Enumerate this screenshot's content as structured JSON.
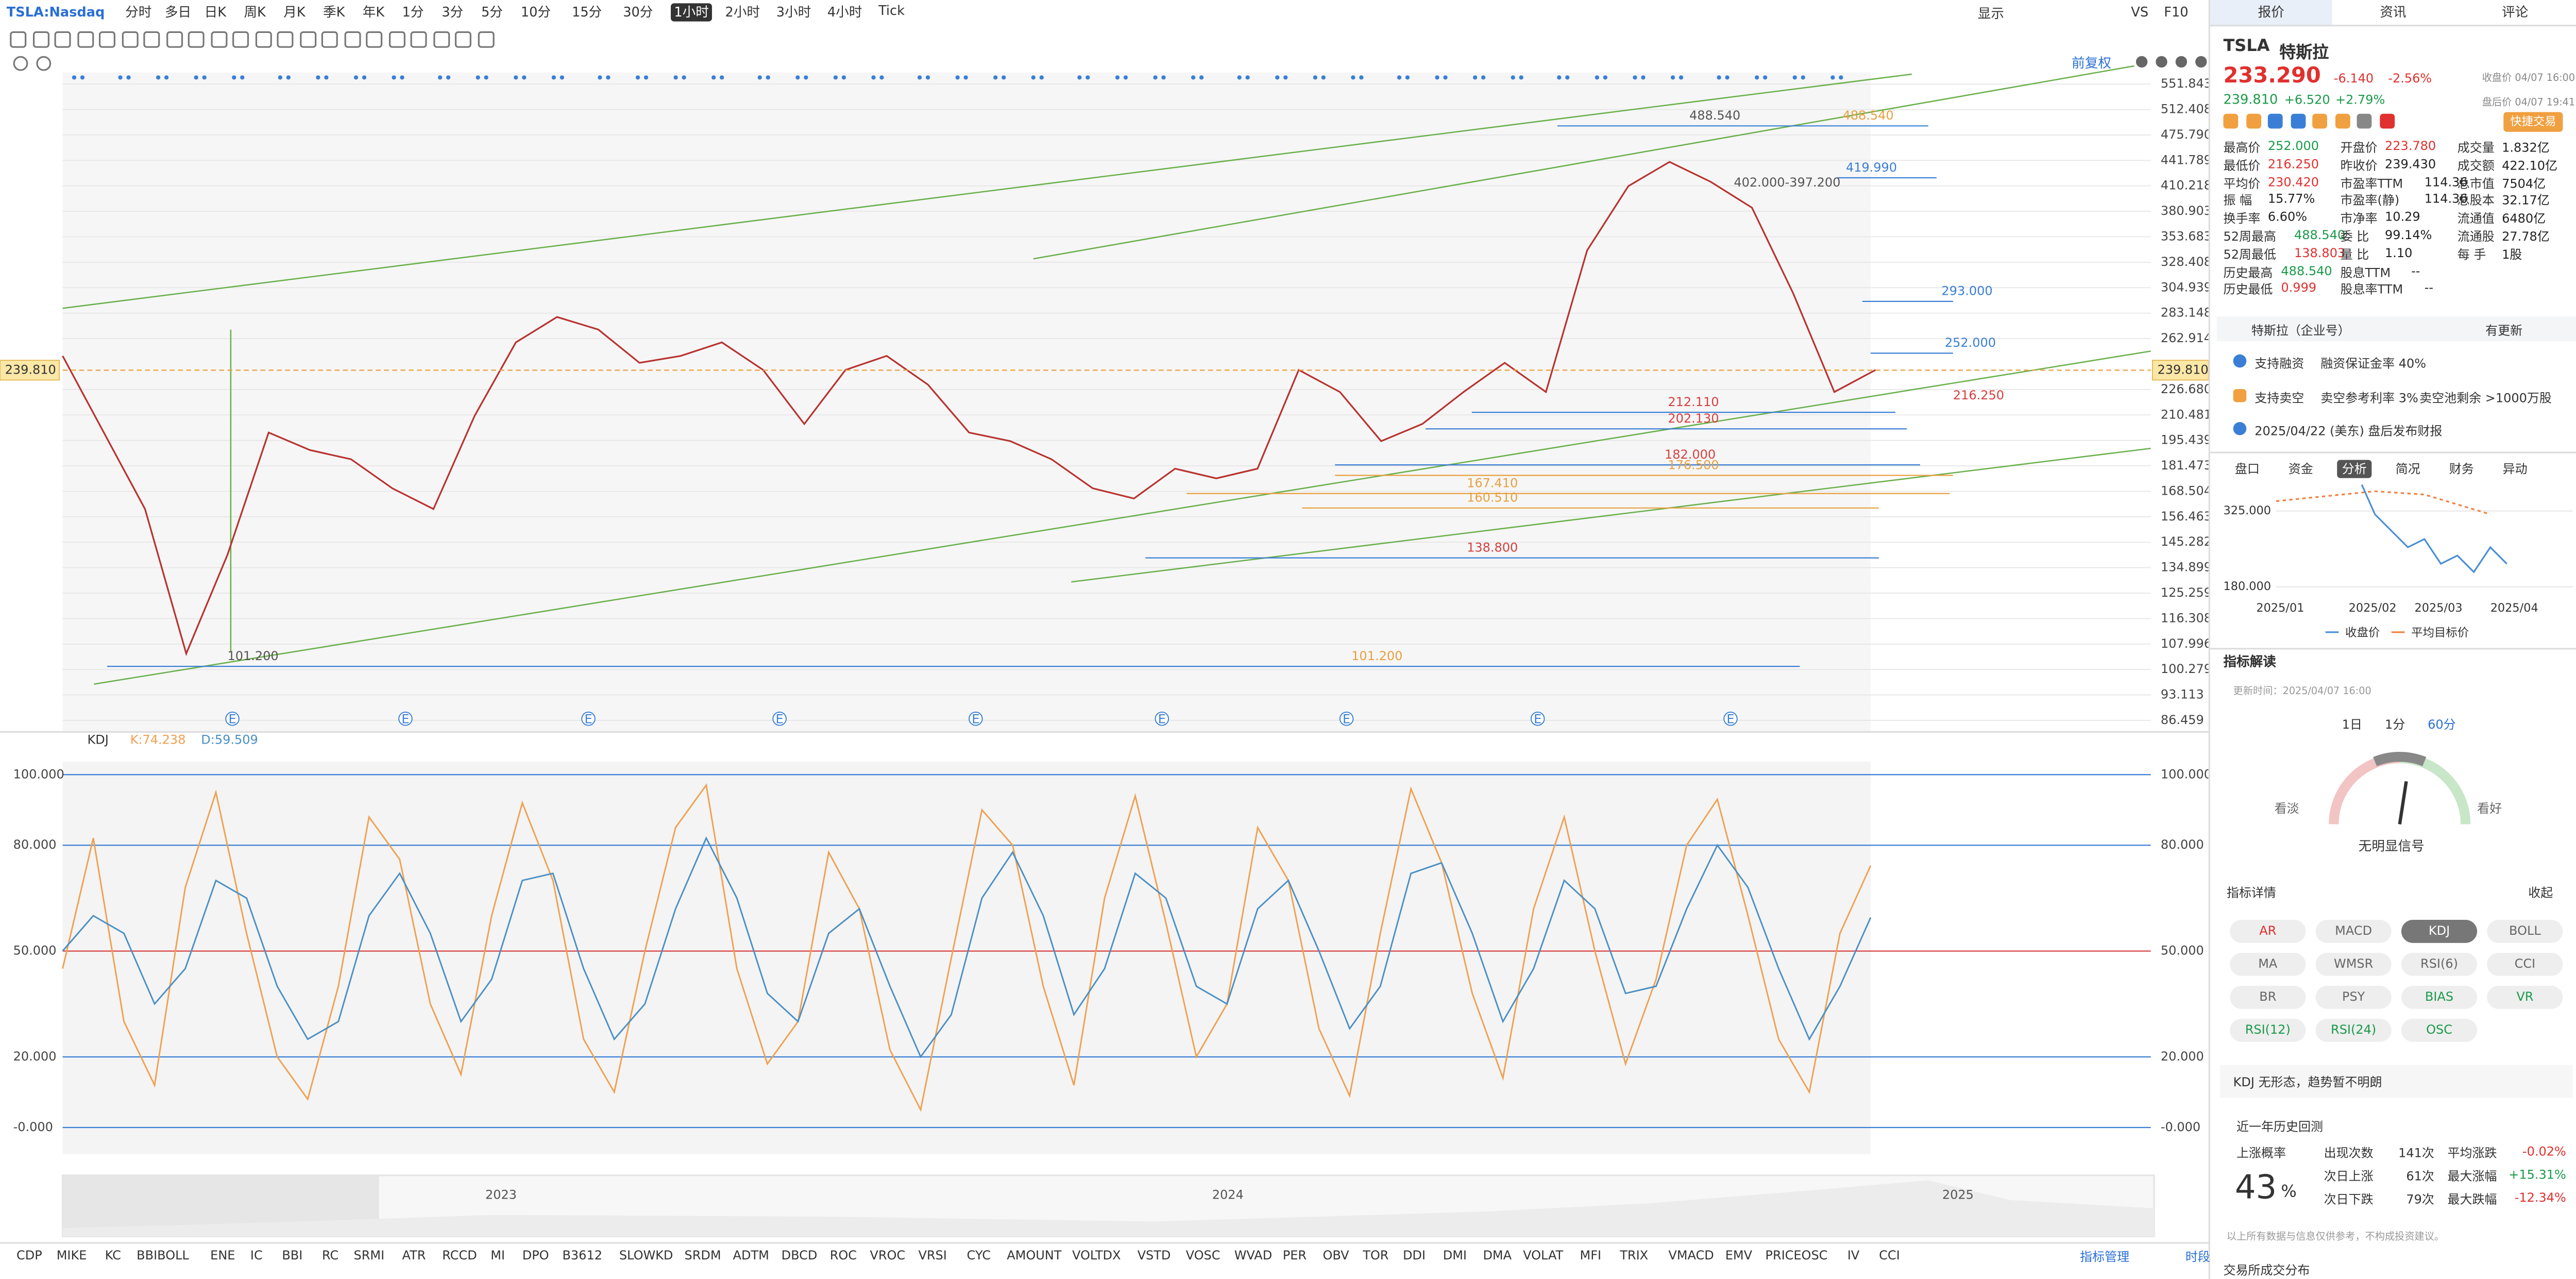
{
  "toolbar": {
    "symbol": "TSLA:Nasdaq",
    "periods": [
      "分时",
      "多日",
      "日K",
      "周K",
      "月K",
      "季K",
      "年K",
      "1分",
      "3分",
      "5分",
      "10分",
      "15分",
      "30分",
      "1小时",
      "2小时",
      "3小时",
      "4小时",
      "Tick"
    ],
    "selected_period": 13,
    "right": [
      "显示",
      "VS",
      "F10"
    ]
  },
  "adjust": "前复权",
  "chart_data": [
    {
      "type": "line",
      "log_scale": true,
      "ylim": [
        86.459,
        551.843
      ],
      "yticks": [
        551.843,
        512.408,
        {
          "value": 475.79,
          "label": "475.790"
        },
        441.789,
        410.218,
        380.903,
        353.683,
        328.408,
        304.939,
        283.148,
        262.914,
        {
          "value": 226.68,
          "label": "226.680"
        },
        210.481,
        195.439,
        181.473,
        168.504,
        156.463,
        145.282,
        134.899,
        125.259,
        116.308,
        107.996,
        100.279,
        93.113,
        86.459
      ],
      "current": {
        "value": 239.81,
        "label": "239.810"
      },
      "color": "#b8322f",
      "values": [
        250,
        200,
        160,
        105,
        140,
        200,
        190,
        185,
        170,
        160,
        210,
        260,
        280,
        270,
        245,
        250,
        260,
        240,
        205,
        240,
        250,
        230,
        200,
        195,
        185,
        170,
        165,
        180,
        175,
        180,
        240,
        225,
        195,
        205,
        225,
        245,
        225,
        340,
        410,
        440,
        415,
        385,
        300,
        225,
        240
      ],
      "annotations": [
        {
          "value": 488.54,
          "label": "488.540",
          "color": "#555555"
        },
        {
          "value": 488.54,
          "label": "488.540",
          "color": "#e8a040"
        },
        {
          "value": 419.99,
          "label": "419.990",
          "color": "#3a7fd5"
        },
        {
          "value": 402,
          "label": "402.000-397.200",
          "color": "#555555"
        },
        {
          "value": 293,
          "label": "293.000",
          "color": "#3a7fd5"
        },
        {
          "value": 252,
          "label": "252.000",
          "color": "#3a7fd5"
        },
        {
          "value": 216.25,
          "label": "216.250",
          "color": "#d84040"
        },
        {
          "value": 212.11,
          "label": "212.110",
          "color": "#d84040"
        },
        {
          "value": 202.13,
          "label": "202.130",
          "color": "#d84040"
        },
        {
          "value": 182,
          "label": "182.000",
          "color": "#d84040"
        },
        {
          "value": 176.5,
          "label": "176.500",
          "color": "#e8a040"
        },
        {
          "value": 167.41,
          "label": "167.410",
          "color": "#e8a040"
        },
        {
          "value": 160.51,
          "label": "160.510",
          "color": "#e8a040"
        },
        {
          "value": 138.8,
          "label": "138.800",
          "color": "#d84040"
        },
        {
          "value": 101.2,
          "label": "101.200",
          "color": "#555555"
        },
        {
          "value": 101.2,
          "label": "101.200",
          "color": "#e8a040"
        }
      ],
      "events": [
        "E",
        "E",
        "E",
        "E",
        "E",
        "E",
        "E",
        "E",
        "E"
      ]
    },
    {
      "type": "line",
      "title": "KDJ",
      "ylim": [
        -7.5,
        102.3
      ],
      "yticks": [
        {
          "value": 100,
          "label": "100.000"
        },
        {
          "value": 80,
          "label": "80.000"
        },
        {
          "value": 50,
          "label": "50.000"
        },
        {
          "value": 20,
          "label": "20.000"
        },
        {
          "value": 0,
          "label": "-0.000"
        }
      ],
      "series": [
        {
          "name": "K:74.238",
          "color": "#f0a050",
          "values": [
            45,
            82,
            30,
            12,
            68,
            95,
            55,
            20,
            8,
            40,
            88,
            76,
            35,
            15,
            60,
            92,
            70,
            25,
            10,
            50,
            85,
            97,
            45,
            18,
            30,
            78,
            62,
            22,
            5,
            48,
            90,
            80,
            40,
            12,
            65,
            94,
            58,
            20,
            35,
            85,
            70,
            28,
            9,
            55,
            96,
            75,
            38,
            14,
            62,
            88,
            50,
            18,
            42,
            80,
            93,
            60,
            25,
            10,
            55,
            74.238
          ]
        },
        {
          "name": "D:59.509",
          "color": "#4a8fc4",
          "values": [
            50,
            60,
            55,
            35,
            45,
            70,
            65,
            40,
            25,
            30,
            60,
            72,
            55,
            30,
            42,
            70,
            72,
            45,
            25,
            35,
            62,
            82,
            65,
            38,
            30,
            55,
            62,
            40,
            20,
            32,
            65,
            78,
            60,
            32,
            45,
            72,
            65,
            40,
            35,
            62,
            70,
            50,
            28,
            40,
            72,
            75,
            55,
            30,
            45,
            70,
            62,
            38,
            40,
            62,
            80,
            68,
            45,
            25,
            40,
            59.509
          ]
        }
      ]
    }
  ],
  "navigator": {
    "years": [
      "2023",
      "2024",
      "2025"
    ]
  },
  "indicator_bar": {
    "items": [
      "CDP",
      "MIKE",
      "KC",
      "BBIBOLL",
      "ENE",
      "IC",
      "BBI",
      "RC",
      "SRMI",
      "ATR",
      "RCCD",
      "MI",
      "DPO",
      "B3612",
      "SLOWKD",
      "SRDM",
      "ADTM",
      "DBCD",
      "ROC",
      "VROC",
      "VRSI",
      "CYC",
      "AMOUNT",
      "VOLTDX",
      "VSTD",
      "VOSC",
      "WVAD",
      "PER",
      "OBV",
      "TOR",
      "DDI",
      "DMI",
      "DMA",
      "VOLAT",
      "MFI",
      "TRIX",
      "VMACD",
      "EMV",
      "PRICEOSC",
      "IV",
      "CCI"
    ],
    "manage": "指标管理",
    "session": "时段"
  },
  "quote": {
    "tabs": [
      "报价",
      "资讯",
      "评论"
    ],
    "ticker": "TSLA",
    "name": "特斯拉",
    "price": "233.290",
    "change": "-6.140",
    "change_pct": "-2.56%",
    "close_label": "收盘价 04/07 16:00",
    "after_price": "239.810",
    "after_change": "+6.520",
    "after_pct": "+2.79%",
    "after_label": "盘后价 04/07 19:41",
    "trade_button": "快捷交易",
    "stats": [
      [
        {
          "label": "最高价",
          "value": "252.000",
          "color": "#1a9a4a"
        },
        {
          "label": "最低价",
          "value": "216.250",
          "color": "#e0302f"
        },
        {
          "label": "平均价",
          "value": "230.420",
          "color": "#e0302f"
        },
        {
          "label": "振 幅",
          "value": "15.77%",
          "color": "#222"
        },
        {
          "label": "换手率",
          "value": "6.60%",
          "color": "#222"
        },
        {
          "label": "52周最高",
          "value": "488.540",
          "color": "#1a9a4a"
        },
        {
          "label": "52周最低",
          "value": "138.803",
          "color": "#e0302f"
        },
        {
          "label": "历史最高",
          "value": "488.540",
          "color": "#1a9a4a"
        },
        {
          "label": "历史最低",
          "value": "0.999",
          "color": "#e0302f"
        }
      ],
      [
        {
          "label": "开盘价",
          "value": "223.780",
          "color": "#e0302f"
        },
        {
          "label": "昨收价",
          "value": "239.430",
          "color": "#222"
        },
        {
          "label": "市盈率TTM",
          "value": "114.36",
          "color": "#222"
        },
        {
          "label": "市盈率(静)",
          "value": "114.36",
          "color": "#222"
        },
        {
          "label": "市净率",
          "value": "10.29",
          "color": "#222"
        },
        {
          "label": "委 比",
          "value": "99.14%",
          "color": "#222"
        },
        {
          "label": "量 比",
          "value": "1.10",
          "color": "#222"
        },
        {
          "label": "股息TTM",
          "value": "--",
          "color": "#222"
        },
        {
          "label": "股息率TTM",
          "value": "--",
          "color": "#222"
        }
      ],
      [
        {
          "label": "成交量",
          "value": "1.832亿",
          "color": "#222"
        },
        {
          "label": "成交额",
          "value": "422.10亿",
          "color": "#222"
        },
        {
          "label": "总市值",
          "value": "7504亿",
          "color": "#222"
        },
        {
          "label": "总股本",
          "value": "32.17亿",
          "color": "#222"
        },
        {
          "label": "流通值",
          "value": "6480亿",
          "color": "#222"
        },
        {
          "label": "流通股",
          "value": "27.78亿",
          "color": "#222"
        },
        {
          "label": "每 手",
          "value": "1股",
          "color": "#222"
        }
      ]
    ],
    "company": "特斯拉（企业号）",
    "update": "有更新",
    "margin": [
      "支持融资",
      "融资保证金率 40%"
    ],
    "short": [
      "支持卖空",
      "卖空参考利率 3%",
      "卖空池剩余 >1000万股"
    ],
    "earnings": "2025/04/22 (美东) 盘后发布财报",
    "subtabs": [
      "盘口",
      "资金",
      "分析",
      "简况",
      "财务",
      "异动"
    ],
    "subtab_selected": 2,
    "mini_chart": {
      "yticks": [
        "325.000",
        "180.000"
      ],
      "xlabels": [
        "2025/01",
        "2025/02",
        "2025/03",
        "2025/04"
      ],
      "legend": [
        "收盘价",
        "平均目标价"
      ]
    }
  },
  "analysis": {
    "title": "指标解读",
    "updated": "更新时间：2025/04/07 16:00",
    "periods": [
      "1日",
      "1分",
      "60分"
    ],
    "bearish": "看淡",
    "bullish": "看好",
    "signal": "无明显信号",
    "details": "指标详情",
    "collapse": "收起",
    "buttons": [
      {
        "label": "AR",
        "color": "#e0302f"
      },
      {
        "label": "MACD",
        "color": "#666"
      },
      {
        "label": "KDJ",
        "color": "#666"
      },
      {
        "label": "BOLL",
        "color": "#666"
      },
      {
        "label": "MA",
        "color": "#666"
      },
      {
        "label": "WMSR",
        "color": "#666"
      },
      {
        "label": "RSI(6)",
        "color": "#666"
      },
      {
        "label": "CCI",
        "color": "#666"
      },
      {
        "label": "BR",
        "color": "#666"
      },
      {
        "label": "PSY",
        "color": "#666"
      },
      {
        "label": "BIAS",
        "color": "#1a9a4a"
      },
      {
        "label": "VR",
        "color": "#1a9a4a"
      },
      {
        "label": "RSI(12)",
        "color": "#1a9a4a"
      },
      {
        "label": "RSI(24)",
        "color": "#1a9a4a"
      },
      {
        "label": "OSC",
        "color": "#1a9a4a"
      }
    ],
    "selected_button": 2,
    "summary": "KDJ 无形态，趋势暂不明朗",
    "backtest": {
      "title": "近一年历史回测",
      "prob_label": "上涨概率",
      "prob": "43",
      "prob_unit": "%",
      "rows": [
        [
          "出现次数",
          "141次",
          "平均涨跌",
          "-0.02%"
        ],
        [
          "次日上涨",
          "61次",
          "最大涨幅",
          "+15.31%"
        ],
        [
          "次日下跌",
          "79次",
          "最大跌幅",
          "-12.34%"
        ]
      ]
    },
    "disclaimer": "以上所有数据与信息仅供参考，不构成投资建议。",
    "footer": "交易所成交分布"
  }
}
